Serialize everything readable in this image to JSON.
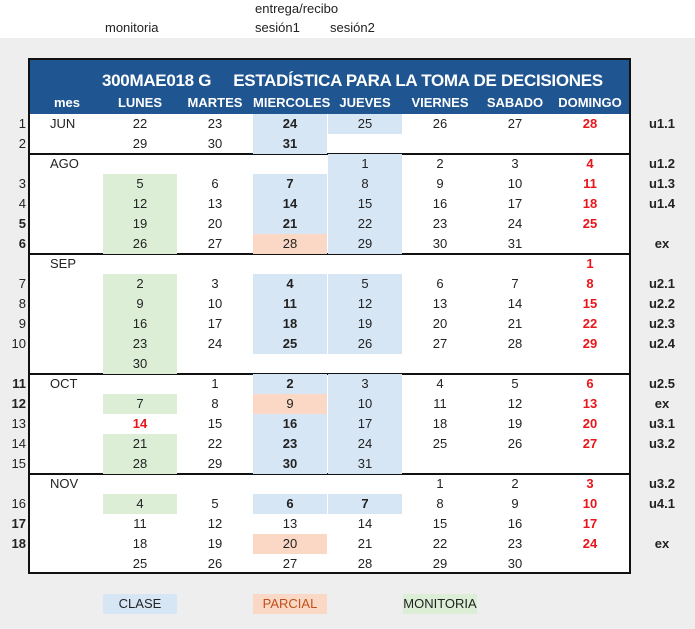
{
  "top_labels": {
    "monitoria": "monitoria",
    "entrega": "entrega/recibo",
    "sesion1": "sesión1",
    "sesion2": "sesión2"
  },
  "title": "300MAE018 G     ESTADÍSTICA PARA LA TOMA DE DECISIONES",
  "headers": [
    "mes",
    "LUNES",
    "MARTES",
    "MIERCOLES",
    "JUEVES",
    "VIERNES",
    "SABADO",
    "DOMINGO"
  ],
  "rows": [
    {
      "num": "1",
      "numbold": false,
      "month": "JUN",
      "days": [
        "22",
        "23",
        "24",
        "25",
        "26",
        "27",
        "28"
      ],
      "unit": "u1.1"
    },
    {
      "num": "2",
      "numbold": false,
      "month": "",
      "days": [
        "29",
        "30",
        "31",
        "",
        "",
        "",
        ""
      ],
      "unit": ""
    },
    {
      "num": "",
      "numbold": false,
      "month": "AGO",
      "days": [
        "",
        "",
        "",
        "1",
        "2",
        "3",
        "4"
      ],
      "unit": "u1.2"
    },
    {
      "num": "3",
      "numbold": false,
      "month": "",
      "days": [
        "5",
        "6",
        "7",
        "8",
        "9",
        "10",
        "11"
      ],
      "unit": "u1.3"
    },
    {
      "num": "4",
      "numbold": false,
      "month": "",
      "days": [
        "12",
        "13",
        "14",
        "15",
        "16",
        "17",
        "18"
      ],
      "unit": "u1.4"
    },
    {
      "num": "5",
      "numbold": true,
      "month": "",
      "days": [
        "19",
        "20",
        "21",
        "22",
        "23",
        "24",
        "25"
      ],
      "unit": ""
    },
    {
      "num": "6",
      "numbold": true,
      "month": "",
      "days": [
        "26",
        "27",
        "28",
        "29",
        "30",
        "31",
        ""
      ],
      "unit": "ex"
    },
    {
      "num": "",
      "numbold": false,
      "month": "SEP",
      "days": [
        "",
        "",
        "",
        "",
        "",
        "",
        "1"
      ],
      "unit": ""
    },
    {
      "num": "7",
      "numbold": false,
      "month": "",
      "days": [
        "2",
        "3",
        "4",
        "5",
        "6",
        "7",
        "8"
      ],
      "unit": "u2.1"
    },
    {
      "num": "8",
      "numbold": false,
      "month": "",
      "days": [
        "9",
        "10",
        "11",
        "12",
        "13",
        "14",
        "15"
      ],
      "unit": "u2.2"
    },
    {
      "num": "9",
      "numbold": false,
      "month": "",
      "days": [
        "16",
        "17",
        "18",
        "19",
        "20",
        "21",
        "22"
      ],
      "unit": "u2.3"
    },
    {
      "num": "10",
      "numbold": false,
      "month": "",
      "days": [
        "23",
        "24",
        "25",
        "26",
        "27",
        "28",
        "29"
      ],
      "unit": "u2.4"
    },
    {
      "num": "",
      "numbold": false,
      "month": "",
      "days": [
        "30",
        "",
        "",
        "",
        "",
        "",
        ""
      ],
      "unit": ""
    },
    {
      "num": "11",
      "numbold": true,
      "month": "OCT",
      "days": [
        "",
        "1",
        "2",
        "3",
        "4",
        "5",
        "6"
      ],
      "unit": "u2.5"
    },
    {
      "num": "12",
      "numbold": true,
      "month": "",
      "days": [
        "7",
        "8",
        "9",
        "10",
        "11",
        "12",
        "13"
      ],
      "unit": "ex"
    },
    {
      "num": "13",
      "numbold": false,
      "month": "",
      "days": [
        "14",
        "15",
        "16",
        "17",
        "18",
        "19",
        "20"
      ],
      "unit": "u3.1"
    },
    {
      "num": "14",
      "numbold": false,
      "month": "",
      "days": [
        "21",
        "22",
        "23",
        "24",
        "25",
        "26",
        "27"
      ],
      "unit": "u3.2"
    },
    {
      "num": "15",
      "numbold": false,
      "month": "",
      "days": [
        "28",
        "29",
        "30",
        "31",
        "",
        "",
        ""
      ],
      "unit": ""
    },
    {
      "num": "",
      "numbold": false,
      "month": "NOV",
      "days": [
        "",
        "",
        "",
        "",
        "1",
        "2",
        "3"
      ],
      "unit": "u3.2"
    },
    {
      "num": "16",
      "numbold": false,
      "month": "",
      "days": [
        "4",
        "5",
        "6",
        "7",
        "8",
        "9",
        "10"
      ],
      "unit": "u4.1"
    },
    {
      "num": "17",
      "numbold": true,
      "month": "",
      "days": [
        "11",
        "12",
        "13",
        "14",
        "15",
        "16",
        "17"
      ],
      "unit": ""
    },
    {
      "num": "18",
      "numbold": true,
      "month": "",
      "days": [
        "18",
        "19",
        "20",
        "21",
        "22",
        "23",
        "24"
      ],
      "unit": "ex"
    },
    {
      "num": "",
      "numbold": false,
      "month": "",
      "days": [
        "25",
        "26",
        "27",
        "28",
        "29",
        "30",
        ""
      ],
      "unit": ""
    }
  ],
  "legend": {
    "clase": "CLASE",
    "parcial": "PARCIAL",
    "monitoria": "MONITORIA"
  },
  "colors": {
    "header_bg": "#1f5591",
    "clase": "#d6e6f5",
    "parcial": "#fad8c5",
    "monitoria": "#dcefd6",
    "sunday_red": "#e8151a"
  }
}
